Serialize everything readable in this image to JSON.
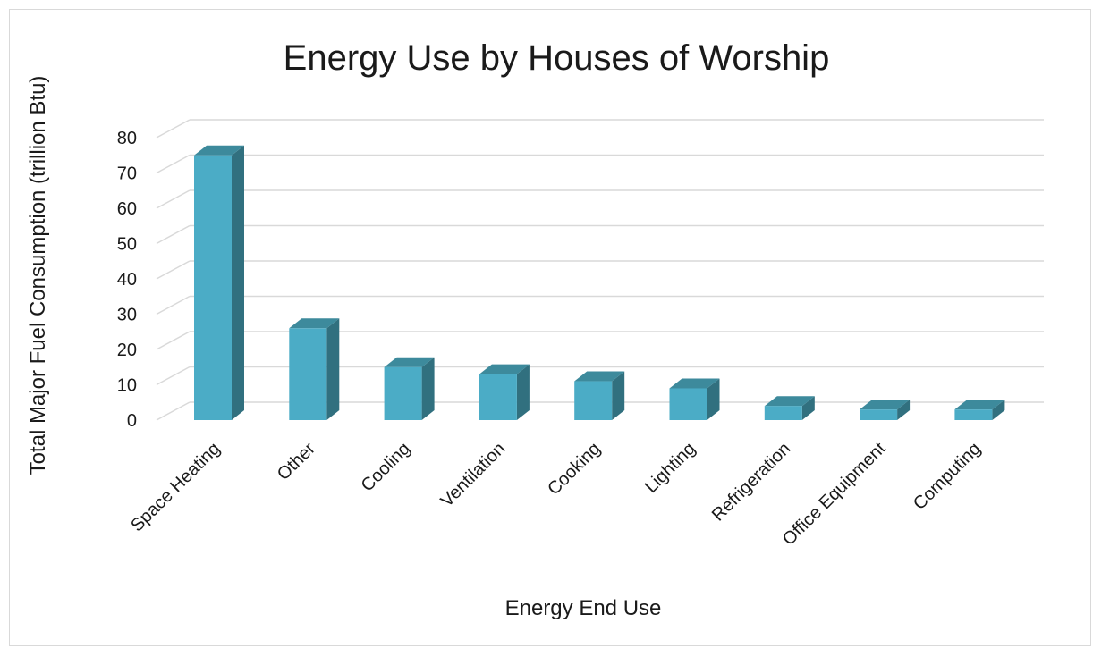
{
  "chart_data": {
    "type": "bar",
    "title": "Energy Use by Houses of Worship",
    "xlabel": "Energy End Use",
    "ylabel": "Total Major Fuel Consumption (trillion Btu)",
    "categories": [
      "Space Heating",
      "Other",
      "Cooling",
      "Ventilation",
      "Cooking",
      "Lighting",
      "Refrigeration",
      "Office Equipment",
      "Computing"
    ],
    "values": [
      75,
      26,
      15,
      13,
      11,
      9,
      4,
      3,
      3
    ],
    "ylim": [
      0,
      80
    ],
    "yticks": [
      0,
      10,
      20,
      30,
      40,
      50,
      60,
      70,
      80
    ],
    "grid": true,
    "legend": "none",
    "style": "3d-clustered-column",
    "colors": {
      "bar_front": "#4bacc6",
      "bar_side": "#31707f",
      "bar_top": "#3d8a9c",
      "grid": "#d9d9d9"
    }
  }
}
